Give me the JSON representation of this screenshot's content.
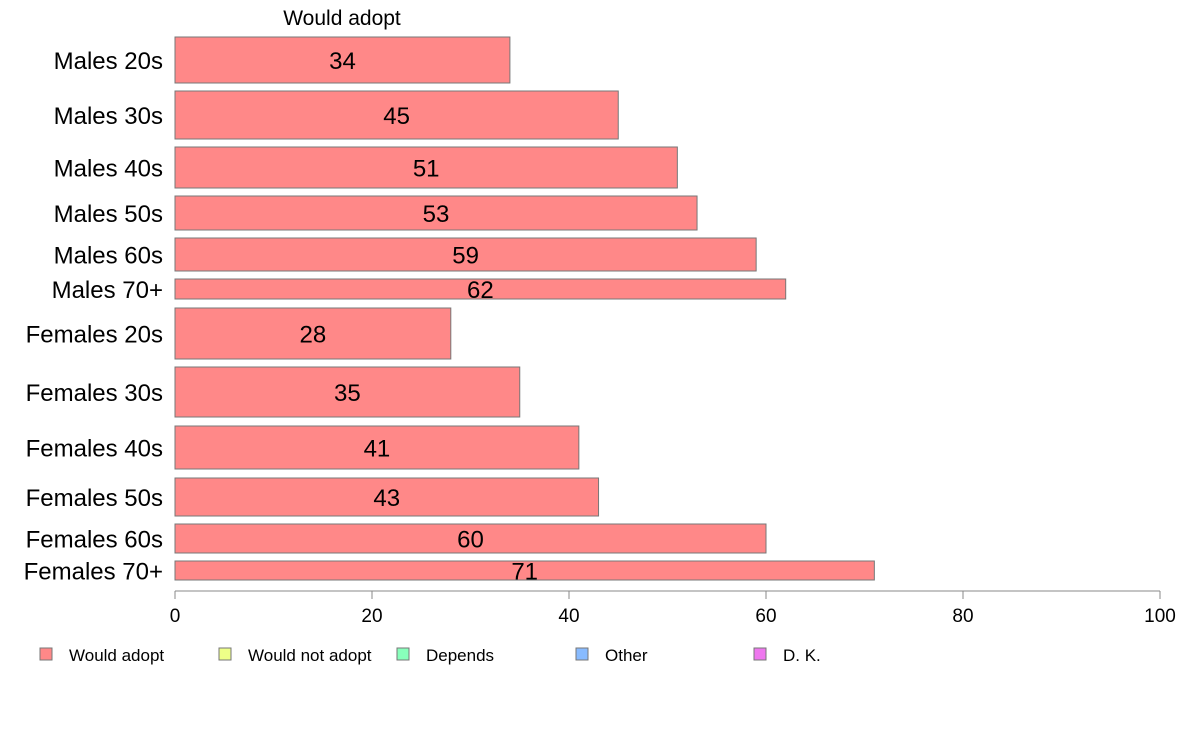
{
  "chart_data": {
    "type": "bar",
    "orientation": "horizontal",
    "stacked": true,
    "series_title": "Would adopt",
    "categories": [
      "Males 20s",
      "Males 30s",
      "Males 40s",
      "Males 50s",
      "Males 60s",
      "Males 70+",
      "Females 20s",
      "Females 30s",
      "Females 40s",
      "Females 50s",
      "Females 60s",
      "Females 70+"
    ],
    "series": [
      {
        "name": "Would adopt",
        "color": "#ff8888",
        "values": [
          34,
          45,
          51,
          53,
          59,
          62,
          28,
          35,
          41,
          43,
          60,
          71
        ]
      }
    ],
    "xlim": [
      0,
      100
    ],
    "xticks": [
      "0",
      "20",
      "40",
      "60",
      "80",
      "100"
    ],
    "legend": {
      "placement": "bottom",
      "items": [
        {
          "label": "Would adopt",
          "color": "#ff8888"
        },
        {
          "label": "Would not adopt",
          "color": "#eeff88"
        },
        {
          "label": "Depends",
          "color": "#88ffbb"
        },
        {
          "label": "Other",
          "color": "#88bbff"
        },
        {
          "label": "D. K.",
          "color": "#ee77ee"
        }
      ]
    },
    "grid": false
  }
}
